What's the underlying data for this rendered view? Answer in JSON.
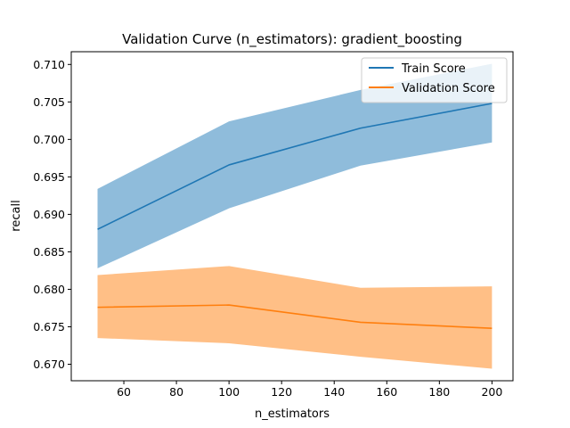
{
  "chart_data": {
    "type": "line",
    "title": "Validation Curve (n_estimators): gradient_boosting",
    "xlabel": "n_estimators",
    "ylabel": "recall",
    "x": [
      50,
      100,
      150,
      200
    ],
    "xlim": [
      40,
      208
    ],
    "ylim": [
      0.6678,
      0.7117
    ],
    "xticks": [
      "60",
      "80",
      "100",
      "120",
      "140",
      "160",
      "180",
      "200"
    ],
    "yticks": [
      "0.670",
      "0.675",
      "0.680",
      "0.685",
      "0.690",
      "0.695",
      "0.700",
      "0.705",
      "0.710"
    ],
    "grid": false,
    "legend_position": "top-right",
    "series": [
      {
        "name": "Train Score",
        "color": "#1f77b4",
        "band_color": "#8fbcdb",
        "values": [
          0.688,
          0.6966,
          0.7015,
          0.7048
        ],
        "upper": [
          0.6934,
          0.7024,
          0.7066,
          0.7101
        ],
        "lower": [
          0.6828,
          0.6908,
          0.6965,
          0.6996
        ]
      },
      {
        "name": "Validation Score",
        "color": "#ff7f0e",
        "band_color": "#ffbf86",
        "values": [
          0.6776,
          0.6779,
          0.6756,
          0.6748
        ],
        "upper": [
          0.6819,
          0.6831,
          0.6802,
          0.6804
        ],
        "lower": [
          0.6735,
          0.6728,
          0.671,
          0.6694
        ]
      }
    ]
  }
}
